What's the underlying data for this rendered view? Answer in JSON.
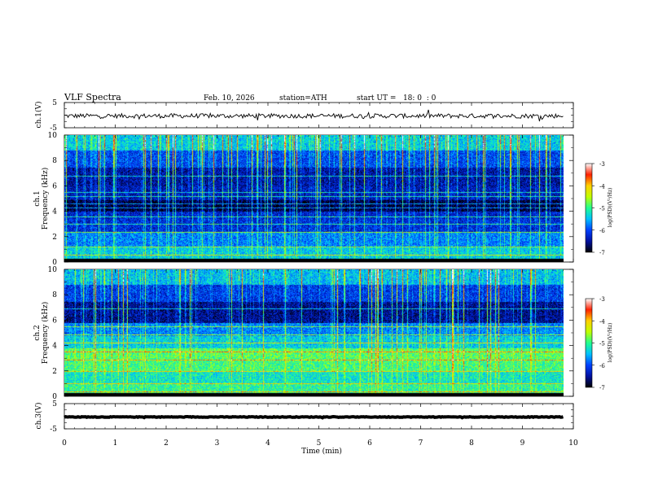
{
  "header": {
    "title": "VLF Spectra",
    "date": "Feb. 10, 2026",
    "station": "station=ATH",
    "start_ut": "start UT =   18: 0  : 0"
  },
  "colors": {
    "axis": "#000000",
    "colormap": [
      "#000000",
      "#0010a0",
      "#0040ff",
      "#00c0ff",
      "#20ff90",
      "#c0ff00",
      "#ffd000",
      "#ff2000",
      "#ffffff"
    ]
  },
  "chart_data": [
    {
      "type": "line",
      "name": "ch1-waveform",
      "ylabel": "ch.1(V)",
      "yticks": [
        "5",
        "-5"
      ],
      "ylim": [
        -5,
        5
      ],
      "xlim": [
        0,
        10
      ],
      "level": -0.3,
      "noise": 0.9,
      "end_time": 9.8
    },
    {
      "type": "heatmap",
      "name": "ch1-spectrogram",
      "ylabel": "ch.1\nFrequency (kHz)",
      "yticks": [
        "0",
        "2",
        "4",
        "6",
        "8",
        "10"
      ],
      "ylim": [
        0,
        10
      ],
      "xlim": [
        0,
        9.8
      ],
      "colorbar_label": "log(PSD)(V²/Hz)",
      "colorbar_ticks": [
        "-3",
        "-4",
        "-5",
        "-6",
        "-7"
      ],
      "color_range": [
        -7,
        -3
      ],
      "bands": [
        {
          "f": [
            0,
            0.3
          ],
          "v": -7
        },
        {
          "f": [
            0.3,
            1.2
          ],
          "v": -5.2
        },
        {
          "f": [
            1.2,
            2.4
          ],
          "v": -5.6
        },
        {
          "f": [
            2.4,
            3.4
          ],
          "v": -6.1
        },
        {
          "f": [
            3.4,
            4.0
          ],
          "v": -6.2
        },
        {
          "f": [
            4.0,
            4.9
          ],
          "v": -6.8
        },
        {
          "f": [
            4.9,
            6.0
          ],
          "v": -6.3
        },
        {
          "f": [
            6.0,
            7.5
          ],
          "v": -6.4
        },
        {
          "f": [
            7.5,
            8.8
          ],
          "v": -5.9
        },
        {
          "f": [
            8.8,
            10
          ],
          "v": -5.2
        }
      ],
      "lines_khz": [
        0.6,
        1.2,
        2.4,
        3.0,
        3.6,
        4.3,
        4.6,
        5.2,
        5.5,
        6.8
      ]
    },
    {
      "type": "heatmap",
      "name": "ch2-spectrogram",
      "ylabel": "ch.2\nFrequency (kHz)",
      "yticks": [
        "0",
        "2",
        "4",
        "6",
        "8",
        "10"
      ],
      "ylim": [
        0,
        10
      ],
      "xlim": [
        0,
        9.8
      ],
      "colorbar_label": "log(PSD)(V²/Hz)",
      "colorbar_ticks": [
        "-3",
        "-4",
        "-5",
        "-6",
        "-7"
      ],
      "color_range": [
        -7,
        -3
      ],
      "bands": [
        {
          "f": [
            0,
            0.3
          ],
          "v": -7
        },
        {
          "f": [
            0.3,
            1.0
          ],
          "v": -4.8
        },
        {
          "f": [
            1.0,
            2.0
          ],
          "v": -5.0
        },
        {
          "f": [
            2.0,
            3.0
          ],
          "v": -4.7
        },
        {
          "f": [
            3.0,
            3.8
          ],
          "v": -4.6
        },
        {
          "f": [
            3.8,
            4.8
          ],
          "v": -5.2
        },
        {
          "f": [
            4.8,
            5.8
          ],
          "v": -5.6
        },
        {
          "f": [
            5.8,
            7.5
          ],
          "v": -6.5
        },
        {
          "f": [
            7.5,
            8.8
          ],
          "v": -6.0
        },
        {
          "f": [
            8.8,
            10
          ],
          "v": -5.3
        }
      ],
      "lines_khz": [
        0.4,
        1.0,
        2.0,
        2.9,
        3.5,
        4.2,
        4.9,
        5.5,
        6.9
      ]
    },
    {
      "type": "line",
      "name": "ch3-waveform",
      "ylabel": "ch.3(V)",
      "yticks": [
        "5",
        "-5"
      ],
      "ylim": [
        -5,
        5
      ],
      "xlim": [
        0,
        10
      ],
      "level": -0.3,
      "noise": 0.12,
      "end_time": 9.8
    }
  ],
  "x_axis": {
    "label": "Time (min)",
    "ticks": [
      "0",
      "1",
      "2",
      "3",
      "4",
      "5",
      "6",
      "7",
      "8",
      "9",
      "10"
    ],
    "range": [
      0,
      10
    ]
  }
}
